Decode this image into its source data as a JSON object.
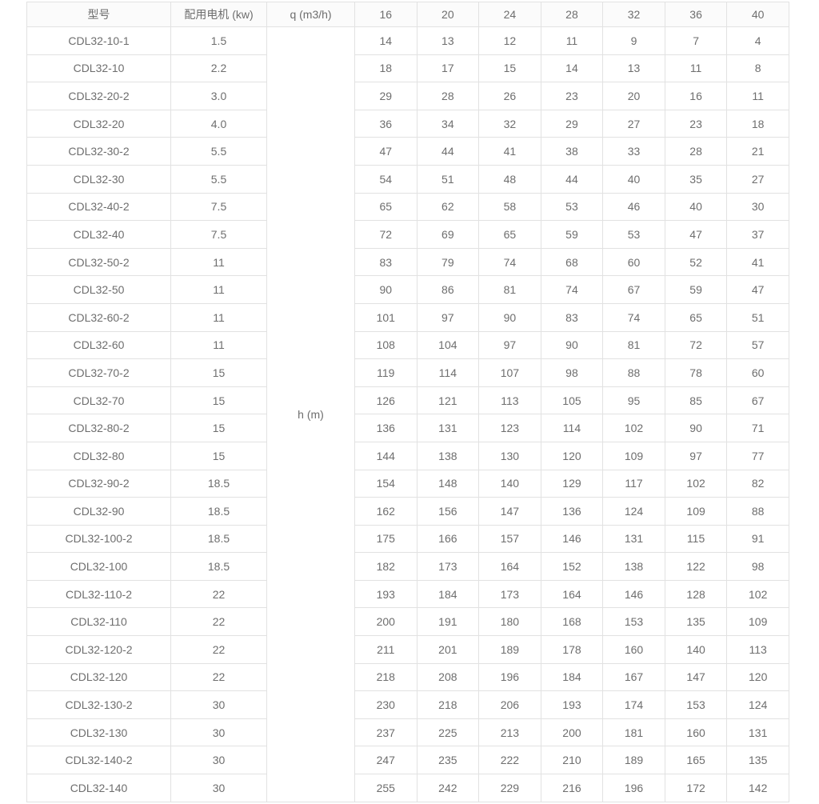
{
  "colors": {
    "text": "#6e6e6e",
    "border": "#e2e2e2",
    "header_bg": "#fbfbfb",
    "body_bg": "#ffffff"
  },
  "table": {
    "header": {
      "model_label": "型号",
      "motor_label": "配用电机 (kw)",
      "flow_label": "q (m3/h)",
      "flow_values": [
        "16",
        "20",
        "24",
        "28",
        "32",
        "36",
        "40"
      ]
    },
    "head_unit_label": "h (m)",
    "rows": [
      {
        "model": "CDL32-10-1",
        "motor": "1.5",
        "heads": [
          "14",
          "13",
          "12",
          "11",
          "9",
          "7",
          "4"
        ]
      },
      {
        "model": "CDL32-10",
        "motor": "2.2",
        "heads": [
          "18",
          "17",
          "15",
          "14",
          "13",
          "11",
          "8"
        ]
      },
      {
        "model": "CDL32-20-2",
        "motor": "3.0",
        "heads": [
          "29",
          "28",
          "26",
          "23",
          "20",
          "16",
          "11"
        ]
      },
      {
        "model": "CDL32-20",
        "motor": "4.0",
        "heads": [
          "36",
          "34",
          "32",
          "29",
          "27",
          "23",
          "18"
        ]
      },
      {
        "model": "CDL32-30-2",
        "motor": "5.5",
        "heads": [
          "47",
          "44",
          "41",
          "38",
          "33",
          "28",
          "21"
        ]
      },
      {
        "model": "CDL32-30",
        "motor": "5.5",
        "heads": [
          "54",
          "51",
          "48",
          "44",
          "40",
          "35",
          "27"
        ]
      },
      {
        "model": "CDL32-40-2",
        "motor": "7.5",
        "heads": [
          "65",
          "62",
          "58",
          "53",
          "46",
          "40",
          "30"
        ]
      },
      {
        "model": "CDL32-40",
        "motor": "7.5",
        "heads": [
          "72",
          "69",
          "65",
          "59",
          "53",
          "47",
          "37"
        ]
      },
      {
        "model": "CDL32-50-2",
        "motor": "11",
        "heads": [
          "83",
          "79",
          "74",
          "68",
          "60",
          "52",
          "41"
        ]
      },
      {
        "model": "CDL32-50",
        "motor": "11",
        "heads": [
          "90",
          "86",
          "81",
          "74",
          "67",
          "59",
          "47"
        ]
      },
      {
        "model": "CDL32-60-2",
        "motor": "11",
        "heads": [
          "101",
          "97",
          "90",
          "83",
          "74",
          "65",
          "51"
        ]
      },
      {
        "model": "CDL32-60",
        "motor": "11",
        "heads": [
          "108",
          "104",
          "97",
          "90",
          "81",
          "72",
          "57"
        ]
      },
      {
        "model": "CDL32-70-2",
        "motor": "15",
        "heads": [
          "119",
          "114",
          "107",
          "98",
          "88",
          "78",
          "60"
        ]
      },
      {
        "model": "CDL32-70",
        "motor": "15",
        "heads": [
          "126",
          "121",
          "113",
          "105",
          "95",
          "85",
          "67"
        ]
      },
      {
        "model": "CDL32-80-2",
        "motor": "15",
        "heads": [
          "136",
          "131",
          "123",
          "114",
          "102",
          "90",
          "71"
        ]
      },
      {
        "model": "CDL32-80",
        "motor": "15",
        "heads": [
          "144",
          "138",
          "130",
          "120",
          "109",
          "97",
          "77"
        ]
      },
      {
        "model": "CDL32-90-2",
        "motor": "18.5",
        "heads": [
          "154",
          "148",
          "140",
          "129",
          "117",
          "102",
          "82"
        ]
      },
      {
        "model": "CDL32-90",
        "motor": "18.5",
        "heads": [
          "162",
          "156",
          "147",
          "136",
          "124",
          "109",
          "88"
        ]
      },
      {
        "model": "CDL32-100-2",
        "motor": "18.5",
        "heads": [
          "175",
          "166",
          "157",
          "146",
          "131",
          "115",
          "91"
        ]
      },
      {
        "model": "CDL32-100",
        "motor": "18.5",
        "heads": [
          "182",
          "173",
          "164",
          "152",
          "138",
          "122",
          "98"
        ]
      },
      {
        "model": "CDL32-110-2",
        "motor": "22",
        "heads": [
          "193",
          "184",
          "173",
          "164",
          "146",
          "128",
          "102"
        ]
      },
      {
        "model": "CDL32-110",
        "motor": "22",
        "heads": [
          "200",
          "191",
          "180",
          "168",
          "153",
          "135",
          "109"
        ]
      },
      {
        "model": "CDL32-120-2",
        "motor": "22",
        "heads": [
          "211",
          "201",
          "189",
          "178",
          "160",
          "140",
          "113"
        ]
      },
      {
        "model": "CDL32-120",
        "motor": "22",
        "heads": [
          "218",
          "208",
          "196",
          "184",
          "167",
          "147",
          "120"
        ]
      },
      {
        "model": "CDL32-130-2",
        "motor": "30",
        "heads": [
          "230",
          "218",
          "206",
          "193",
          "174",
          "153",
          "124"
        ]
      },
      {
        "model": "CDL32-130",
        "motor": "30",
        "heads": [
          "237",
          "225",
          "213",
          "200",
          "181",
          "160",
          "131"
        ]
      },
      {
        "model": "CDL32-140-2",
        "motor": "30",
        "heads": [
          "247",
          "235",
          "222",
          "210",
          "189",
          "165",
          "135"
        ]
      },
      {
        "model": "CDL32-140",
        "motor": "30",
        "heads": [
          "255",
          "242",
          "229",
          "216",
          "196",
          "172",
          "142"
        ]
      }
    ]
  }
}
